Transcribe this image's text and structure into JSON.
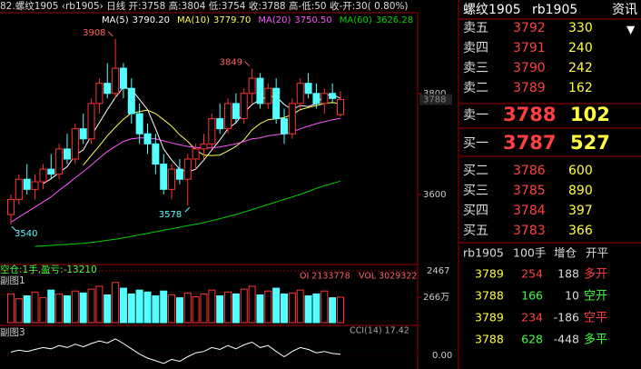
{
  "header": {
    "line": "82.螺纹1905 ‹rb1905› 日线 开:3758 高:3804 低:3754 收:3788 高-低:50 收-开:30( 0.80%)"
  },
  "kline": {
    "ylim": [
      3463,
      3958
    ],
    "yticks": [
      3600,
      3800
    ],
    "last_price": 3788,
    "candles": [
      [
        3560,
        3600,
        3540,
        3590
      ],
      [
        3590,
        3640,
        3580,
        3630
      ],
      [
        3630,
        3660,
        3600,
        3610
      ],
      [
        3610,
        3640,
        3590,
        3625
      ],
      [
        3625,
        3660,
        3610,
        3650
      ],
      [
        3650,
        3680,
        3630,
        3640
      ],
      [
        3640,
        3700,
        3630,
        3690
      ],
      [
        3690,
        3720,
        3660,
        3670
      ],
      [
        3670,
        3740,
        3660,
        3730
      ],
      [
        3730,
        3760,
        3700,
        3710
      ],
      [
        3710,
        3790,
        3700,
        3780
      ],
      [
        3780,
        3830,
        3760,
        3820
      ],
      [
        3820,
        3860,
        3790,
        3800
      ],
      [
        3800,
        3908,
        3790,
        3850
      ],
      [
        3850,
        3860,
        3790,
        3810
      ],
      [
        3810,
        3830,
        3740,
        3760
      ],
      [
        3760,
        3780,
        3700,
        3720
      ],
      [
        3720,
        3740,
        3680,
        3700
      ],
      [
        3700,
        3720,
        3640,
        3660
      ],
      [
        3660,
        3680,
        3600,
        3610
      ],
      [
        3610,
        3660,
        3590,
        3650
      ],
      [
        3650,
        3670,
        3620,
        3630
      ],
      [
        3630,
        3680,
        3578,
        3670
      ],
      [
        3670,
        3700,
        3650,
        3690
      ],
      [
        3690,
        3720,
        3670,
        3700
      ],
      [
        3700,
        3760,
        3690,
        3750
      ],
      [
        3750,
        3780,
        3720,
        3730
      ],
      [
        3730,
        3790,
        3720,
        3780
      ],
      [
        3780,
        3800,
        3740,
        3750
      ],
      [
        3750,
        3810,
        3740,
        3800
      ],
      [
        3800,
        3849,
        3780,
        3830
      ],
      [
        3830,
        3840,
        3770,
        3780
      ],
      [
        3780,
        3820,
        3770,
        3810
      ],
      [
        3810,
        3830,
        3740,
        3750
      ],
      [
        3750,
        3770,
        3700,
        3720
      ],
      [
        3720,
        3790,
        3710,
        3780
      ],
      [
        3780,
        3830,
        3770,
        3820
      ],
      [
        3820,
        3840,
        3790,
        3800
      ],
      [
        3800,
        3820,
        3770,
        3780
      ],
      [
        3780,
        3810,
        3760,
        3800
      ],
      [
        3800,
        3820,
        3780,
        3790
      ],
      [
        3758,
        3804,
        3754,
        3788
      ]
    ],
    "annotations": [
      3908,
      3849,
      3578,
      3540
    ],
    "ma": [
      {
        "name": "MA(5)",
        "value_label": "3790.20",
        "color": "#ffffff",
        "values": [
          null,
          null,
          null,
          null,
          3621,
          3631,
          3643,
          3655,
          3678,
          3688,
          3716,
          3742,
          3768,
          3792,
          3812,
          3808,
          3788,
          3768,
          3730,
          3690,
          3668,
          3650,
          3644,
          3650,
          3668,
          3688,
          3708,
          3730,
          3742,
          3762,
          3778,
          3788,
          3794,
          3794,
          3778,
          3768,
          3776,
          3774,
          3780,
          3796,
          3798,
          3790.2
        ]
      },
      {
        "name": "MA(10)",
        "value_label": "3779.70",
        "color": "#ffff54",
        "values": [
          null,
          null,
          null,
          null,
          null,
          null,
          null,
          null,
          null,
          3658,
          3677,
          3696,
          3716,
          3733,
          3749,
          3761,
          3764,
          3767,
          3760,
          3748,
          3735,
          3718,
          3705,
          3688,
          3678,
          3677,
          3678,
          3686,
          3695,
          3708,
          3728,
          3740,
          3748,
          3750,
          3752,
          3758,
          3768,
          3772,
          3776,
          3780,
          3782,
          3779.7
        ]
      },
      {
        "name": "MA(20)",
        "value_label": "3750.50",
        "color": "#ff54ff",
        "values": [
          3545,
          3555,
          3565,
          3575,
          3585,
          3595,
          3608,
          3620,
          3633,
          3645,
          3658,
          3672,
          3685,
          3695,
          3705,
          3710,
          3712,
          3712,
          3710,
          3706,
          3702,
          3698,
          3695,
          3693,
          3692,
          3692,
          3694,
          3697,
          3700,
          3705,
          3710,
          3712,
          3716,
          3718,
          3720,
          3724,
          3730,
          3735,
          3740,
          3744,
          3748,
          3750.5
        ]
      },
      {
        "name": "MA(60)",
        "value_label": "3626.28",
        "color": "#00d200",
        "values": [
          null,
          null,
          null,
          3497,
          3498,
          3499,
          3500,
          3501,
          3502,
          3503,
          3505,
          3507,
          3509,
          3511,
          3514,
          3517,
          3520,
          3523,
          3526,
          3529,
          3532,
          3535,
          3538,
          3541,
          3544,
          3548,
          3552,
          3556,
          3560,
          3565,
          3570,
          3575,
          3580,
          3585,
          3590,
          3595,
          3600,
          3606,
          3612,
          3617,
          3622,
          3626.28
        ]
      }
    ]
  },
  "volume": {
    "position": "空仓:1手,盈亏:-13210",
    "oi": "OI 2133778",
    "vol": "VOL 3029322",
    "oi_axis": "2467",
    "title": "副图1",
    "ylim": [
      0,
      522
    ],
    "yticks": [
      {
        "value": 266,
        "label": "266万"
      }
    ],
    "values": [
      300,
      250,
      280,
      320,
      260,
      340,
      300,
      280,
      330,
      310,
      350,
      380,
      290,
      420,
      360,
      300,
      340,
      320,
      280,
      330,
      290,
      260,
      310,
      270,
      300,
      340,
      280,
      320,
      300,
      350,
      380,
      290,
      330,
      360,
      300,
      310,
      340,
      280,
      300,
      330,
      260,
      266
    ]
  },
  "cci": {
    "title": "副图3",
    "label": "CCI(14) 17.42",
    "ylim": [
      -164,
      400
    ],
    "yticks": [
      {
        "value": 0,
        "label": "0.00"
      }
    ],
    "values": [
      50,
      80,
      60,
      90,
      120,
      100,
      150,
      120,
      170,
      130,
      180,
      220,
      190,
      250,
      180,
      100,
      20,
      -40,
      -80,
      -120,
      -60,
      -90,
      -20,
      40,
      60,
      120,
      90,
      150,
      100,
      160,
      200,
      120,
      150,
      60,
      -20,
      60,
      120,
      90,
      40,
      60,
      30,
      17.42
    ]
  },
  "panel": {
    "name": "螺纹1905",
    "code": "rb1905",
    "info": "资讯"
  },
  "order_book": {
    "asks": [
      {
        "label": "卖五",
        "price": 3792,
        "volume": 330
      },
      {
        "label": "卖四",
        "price": 3791,
        "volume": 240
      },
      {
        "label": "卖三",
        "price": 3790,
        "volume": 242
      },
      {
        "label": "卖二",
        "price": 3789,
        "volume": 162
      },
      {
        "label": "卖一",
        "price": 3788,
        "volume": 102
      }
    ],
    "bids": [
      {
        "label": "买一",
        "price": 3787,
        "volume": 527
      },
      {
        "label": "买二",
        "price": 3786,
        "volume": 600
      },
      {
        "label": "买三",
        "price": 3785,
        "volume": 890
      },
      {
        "label": "买四",
        "price": 3784,
        "volume": 397
      },
      {
        "label": "买五",
        "price": 3783,
        "volume": 366
      }
    ]
  },
  "trades": {
    "header": [
      "rb1905",
      "100手",
      "增仓",
      "开平"
    ],
    "rows": [
      {
        "price": 3789,
        "volume": 254,
        "change": 188,
        "type": "多开",
        "color": "#ff4040"
      },
      {
        "price": 3788,
        "volume": 166,
        "change": 10,
        "type": "空开",
        "color": "#40ff40"
      },
      {
        "price": 3789,
        "volume": 234,
        "change": -186,
        "type": "空平",
        "color": "#ff4040"
      },
      {
        "price": 3788,
        "volume": 628,
        "change": -448,
        "type": "多平",
        "color": "#40ff40"
      }
    ]
  }
}
